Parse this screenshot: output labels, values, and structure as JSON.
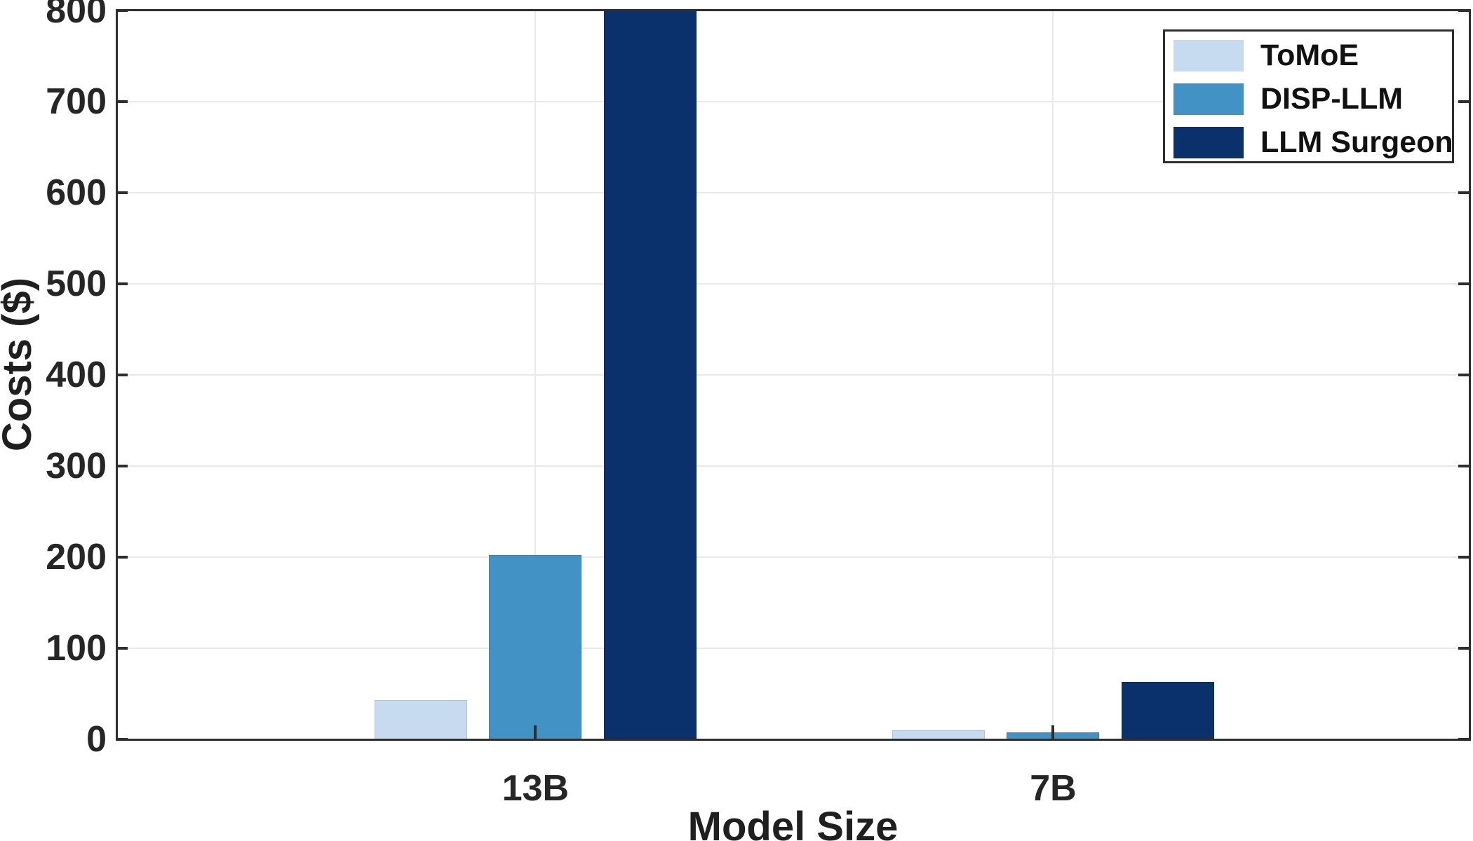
{
  "chart_data": {
    "type": "bar",
    "title": "",
    "xlabel": "Model Size",
    "ylabel": "Costs ($)",
    "categories": [
      "13B",
      "7B"
    ],
    "series": [
      {
        "name": "ToMoE",
        "color": "#c6dbef",
        "values": [
          43,
          10
        ]
      },
      {
        "name": "DISP-LLM",
        "color": "#4292c6",
        "values": [
          202,
          8
        ]
      },
      {
        "name": "LLM Surgeon",
        "color": "#0a316b",
        "values": [
          800,
          63
        ]
      }
    ],
    "ylim": [
      0,
      800
    ],
    "ytick_step": 100,
    "yticks": [
      0,
      100,
      200,
      300,
      400,
      500,
      600,
      700,
      800
    ],
    "grid": true,
    "legend_position": "top-right",
    "axis_color": "#2e2e2e",
    "grid_color": "#e9e9e9",
    "text_color": "#262626",
    "background": "#ffffff"
  }
}
